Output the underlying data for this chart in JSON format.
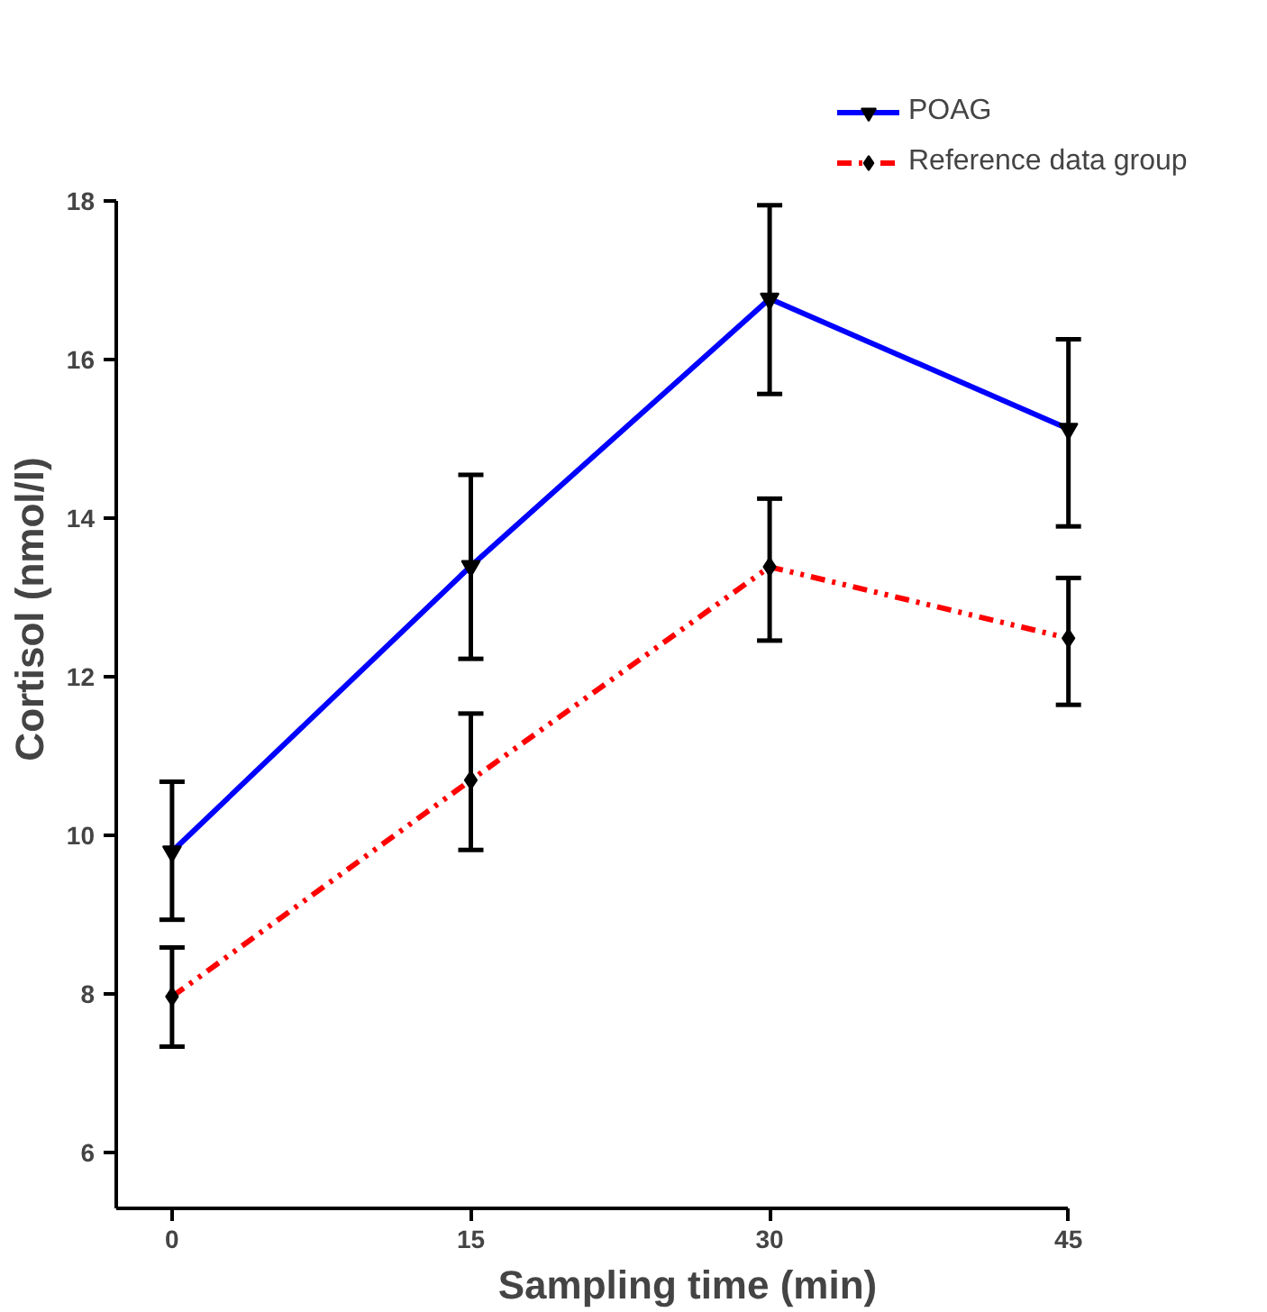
{
  "chart_data": {
    "type": "line",
    "xlabel": "Sampling time (min)",
    "ylabel": "Cortisol (nmol/l)",
    "x": [
      0,
      15,
      30,
      45
    ],
    "xlim": [
      -2.8,
      45
    ],
    "xticks": [
      0,
      15,
      30,
      45
    ],
    "ylim": [
      5.3,
      18
    ],
    "yticks": [
      6,
      8,
      10,
      12,
      14,
      16,
      18
    ],
    "grid": false,
    "legend": "top right",
    "series": [
      {
        "name": "POAG",
        "color": "#0000ff",
        "marker": "triangle",
        "line_style": "solid",
        "values": [
          9.8,
          13.4,
          16.77,
          15.13
        ],
        "errors": [
          [
            8.94,
            10.68
          ],
          [
            12.23,
            14.55
          ],
          [
            15.57,
            17.95
          ],
          [
            13.9,
            16.26
          ]
        ]
      },
      {
        "name": "Reference data group",
        "color": "#ff0000",
        "marker": "diamond",
        "line_style": "dashed",
        "values": [
          7.97,
          10.7,
          13.39,
          12.49
        ],
        "errors": [
          [
            7.34,
            8.59
          ],
          [
            9.82,
            11.54
          ],
          [
            12.46,
            14.25
          ],
          [
            11.65,
            13.25
          ]
        ]
      }
    ]
  }
}
